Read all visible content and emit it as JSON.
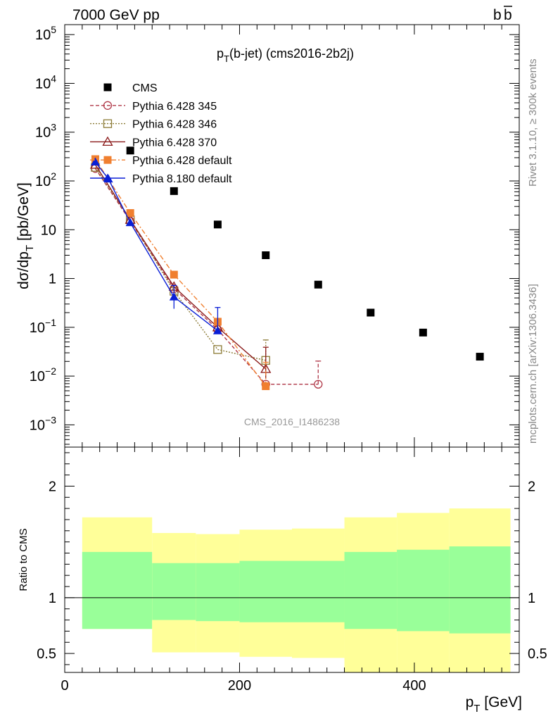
{
  "header": {
    "energy_label": "7000 GeV pp",
    "process_label": "b̅b",
    "process_b1": "b",
    "process_b2": "b"
  },
  "side_labels": {
    "rivet": "Rivet 3.1.10, ≥ 300k events",
    "mcplots": "mcplots.cern.ch [arXiv:1306.3436]"
  },
  "colors": {
    "cms": "#000000",
    "py345": "#b03848",
    "py346": "#8b7a35",
    "py370": "#8b1a1a",
    "py6def": "#f07f2f",
    "py8def": "#0a1fd6",
    "band_yellow": "#ffff99",
    "band_green": "#99ff99"
  },
  "chart_data": [
    {
      "type": "scatter",
      "title": "p_T(b-jet) (cms2016-2b2j)",
      "title_main": "p",
      "title_sub": "T",
      "title_rest": "(b-jet) (cms2016-2b2j)",
      "ylabel": "dσ/dp_T [pb/GeV]",
      "ylabel_parts": {
        "pre": "dσ/dp",
        "sub": "T",
        "post": " [pb/GeV]"
      },
      "yscale": "log",
      "ylim": [
        0.00035,
        160000
      ],
      "xlim": [
        0,
        520
      ],
      "watermark": "CMS_2016_I1486238",
      "legend_position": "top-left",
      "y_tick_labels": [
        {
          "v": 100000,
          "base": "10",
          "exp": "5"
        },
        {
          "v": 10000,
          "base": "10",
          "exp": "4"
        },
        {
          "v": 1000,
          "base": "10",
          "exp": "3"
        },
        {
          "v": 100,
          "base": "10",
          "exp": "2"
        },
        {
          "v": 10,
          "base": "10",
          "exp": ""
        },
        {
          "v": 1,
          "base": "1",
          "exp": ""
        },
        {
          "v": 0.1,
          "base": "10",
          "exp": "−1"
        },
        {
          "v": 0.01,
          "base": "10",
          "exp": "−2"
        },
        {
          "v": 0.001,
          "base": "10",
          "exp": "−3"
        }
      ],
      "series": [
        {
          "name": "CMS",
          "key": "cms",
          "style": "data",
          "marker": "square-filled",
          "points": [
            {
              "x": 75,
              "y": 420
            },
            {
              "x": 125,
              "y": 62
            },
            {
              "x": 175,
              "y": 12.8
            },
            {
              "x": 230,
              "y": 3.0
            },
            {
              "x": 290,
              "y": 0.75
            },
            {
              "x": 350,
              "y": 0.2
            },
            {
              "x": 410,
              "y": 0.078
            },
            {
              "x": 475,
              "y": 0.025
            }
          ]
        },
        {
          "name": "Pythia 6.428 345",
          "key": "py345",
          "dash": "5,3",
          "marker": "circle-open",
          "points": [
            {
              "x": 35,
              "y": 180
            },
            {
              "x": 75,
              "y": 15
            },
            {
              "x": 125,
              "y": 0.62
            },
            {
              "x": 175,
              "y": 0.09
            },
            {
              "x": 230,
              "y": 0.0068
            },
            {
              "x": 290,
              "y": 0.0068,
              "yerr_lo": 1e-07,
              "yerr_hi": 0.0135
            }
          ]
        },
        {
          "name": "Pythia 6.428 346",
          "key": "py346",
          "dash": "2,2",
          "marker": "square-open",
          "points": [
            {
              "x": 35,
              "y": 190
            },
            {
              "x": 75,
              "y": 16
            },
            {
              "x": 125,
              "y": 0.55
            },
            {
              "x": 175,
              "y": 0.035
            },
            {
              "x": 230,
              "y": 0.021,
              "yerr_lo": 1e-07,
              "yerr_hi": 0.034
            }
          ]
        },
        {
          "name": "Pythia 6.428 370",
          "key": "py370",
          "dash": "",
          "marker": "triangle-open",
          "points": [
            {
              "x": 35,
              "y": 215
            },
            {
              "x": 75,
              "y": 16
            },
            {
              "x": 125,
              "y": 0.68
            },
            {
              "x": 175,
              "y": 0.1
            },
            {
              "x": 230,
              "y": 0.014,
              "yerr_lo": 0.005,
              "yerr_hi": 0.025
            }
          ]
        },
        {
          "name": "Pythia 6.428 default",
          "key": "py6def",
          "dash": "7,3,2,3",
          "marker": "square-filled",
          "points": [
            {
              "x": 35,
              "y": 280
            },
            {
              "x": 75,
              "y": 22
            },
            {
              "x": 125,
              "y": 1.2
            },
            {
              "x": 175,
              "y": 0.13
            },
            {
              "x": 230,
              "y": 0.0062,
              "yerr_lo": 1e-07,
              "yerr_hi": 0.013
            }
          ]
        },
        {
          "name": "Pythia 8.180 default",
          "key": "py8def",
          "dash": "",
          "marker": "triangle-filled",
          "points": [
            {
              "x": 35,
              "y": 245
            },
            {
              "x": 50,
              "y": 110
            },
            {
              "x": 75,
              "y": 14
            },
            {
              "x": 125,
              "y": 0.42,
              "yerr_lo": 0.18,
              "yerr_hi": 0.3
            },
            {
              "x": 175,
              "y": 0.085,
              "yerr_lo": 1e-07,
              "yerr_hi": 0.17
            }
          ]
        }
      ]
    },
    {
      "type": "area",
      "ylabel": "Ratio to CMS",
      "xlabel": "p_T [GeV]",
      "xlabel_parts": {
        "pre": "p",
        "sub": "T",
        "post": " [GeV]"
      },
      "xlim": [
        0,
        520
      ],
      "ylim": [
        0.33,
        2.35
      ],
      "x_tick_labels": [
        0,
        200,
        400
      ],
      "y_tick_labels_left": [
        2,
        1,
        0.5
      ],
      "y_tick_labels_right": [
        2,
        1,
        0.5
      ],
      "reference_line": 1,
      "bins": [
        {
          "x_lo": 20,
          "x_hi": 100,
          "y_lo": 0.72,
          "y_hi": 1.72,
          "g_lo": 0.72,
          "g_hi": 1.41
        },
        {
          "x_lo": 100,
          "x_hi": 150,
          "y_lo": 0.51,
          "y_hi": 1.58,
          "g_lo": 0.8,
          "g_hi": 1.31
        },
        {
          "x_lo": 150,
          "x_hi": 200,
          "y_lo": 0.51,
          "y_hi": 1.57,
          "g_lo": 0.79,
          "g_hi": 1.31
        },
        {
          "x_lo": 200,
          "x_hi": 260,
          "y_lo": 0.47,
          "y_hi": 1.61,
          "g_lo": 0.78,
          "g_hi": 1.33
        },
        {
          "x_lo": 260,
          "x_hi": 320,
          "y_lo": 0.46,
          "y_hi": 1.62,
          "g_lo": 0.78,
          "g_hi": 1.33
        },
        {
          "x_lo": 320,
          "x_hi": 380,
          "y_lo": 0.33,
          "y_hi": 1.72,
          "g_lo": 0.72,
          "g_hi": 1.41
        },
        {
          "x_lo": 380,
          "x_hi": 440,
          "y_lo": 0.33,
          "y_hi": 1.76,
          "g_lo": 0.7,
          "g_hi": 1.43
        },
        {
          "x_lo": 440,
          "x_hi": 510,
          "y_lo": 0.33,
          "y_hi": 1.8,
          "g_lo": 0.68,
          "g_hi": 1.46
        }
      ]
    }
  ]
}
